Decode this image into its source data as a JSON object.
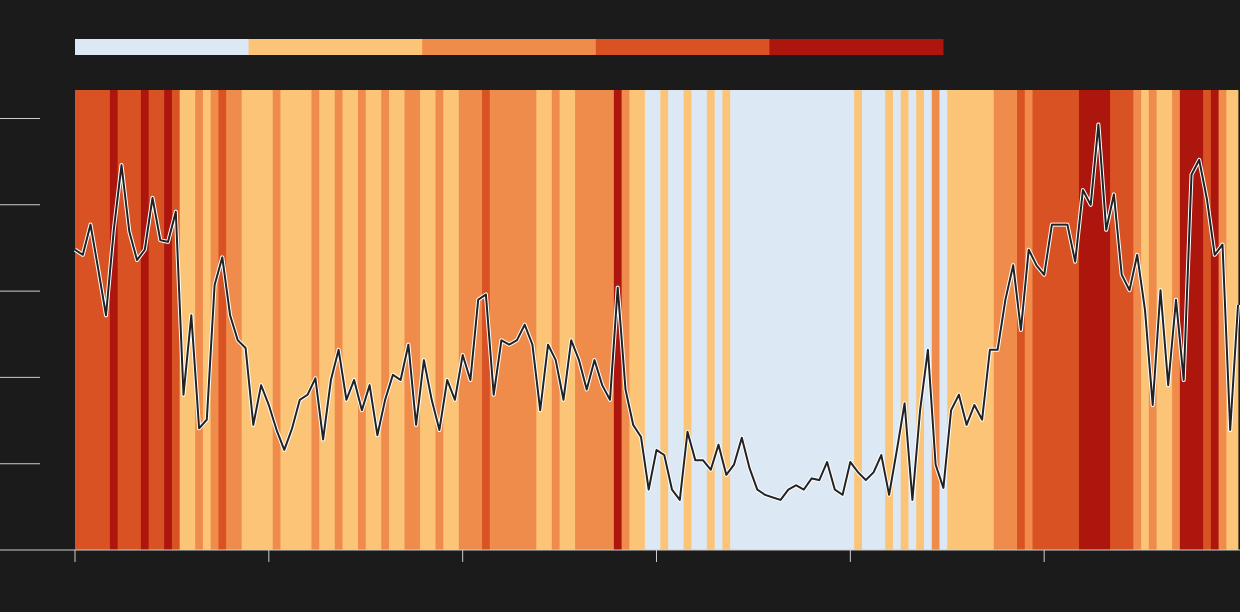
{
  "chart_data": {
    "type": "line",
    "x": [
      0,
      1,
      2,
      3,
      4,
      5,
      6,
      7,
      8,
      9,
      10,
      11,
      12,
      13,
      14,
      15,
      16,
      17,
      18,
      19,
      20,
      21,
      22,
      23,
      24,
      25,
      26,
      27,
      28,
      29,
      30,
      31,
      32,
      33,
      34,
      35,
      36,
      37,
      38,
      39,
      40,
      41,
      42,
      43,
      44,
      45,
      46,
      47,
      48,
      49,
      50,
      51,
      52,
      53,
      54,
      55,
      56,
      57,
      58,
      59,
      60,
      61,
      62,
      63,
      64,
      65,
      66,
      67,
      68,
      69,
      70,
      71,
      72,
      73,
      74,
      75,
      76,
      77,
      78,
      79,
      80,
      81,
      82,
      83,
      84,
      85,
      86,
      87,
      88,
      89,
      90,
      91,
      92,
      93,
      94,
      95,
      96,
      97,
      98,
      99,
      100,
      101,
      102,
      103,
      104,
      105,
      106,
      107,
      108,
      109,
      110,
      111,
      112,
      113,
      114,
      115,
      116,
      117,
      118,
      119,
      120,
      121,
      122,
      123,
      124,
      125,
      126,
      127,
      128,
      129,
      130,
      131,
      132,
      133,
      134,
      135,
      136,
      137,
      138,
      139,
      140,
      141,
      142,
      143,
      144,
      145,
      146,
      147,
      148,
      149,
      150
    ],
    "values": [
      3.48,
      3.42,
      3.77,
      3.25,
      2.72,
      3.71,
      4.46,
      3.69,
      3.36,
      3.48,
      4.08,
      3.59,
      3.57,
      3.92,
      1.8,
      2.72,
      1.41,
      1.51,
      3.07,
      3.39,
      2.72,
      2.43,
      2.34,
      1.45,
      1.91,
      1.68,
      1.39,
      1.16,
      1.41,
      1.74,
      1.8,
      1.99,
      1.28,
      1.97,
      2.32,
      1.74,
      1.97,
      1.62,
      1.91,
      1.33,
      1.74,
      2.03,
      1.97,
      2.38,
      1.45,
      2.2,
      1.74,
      1.39,
      1.97,
      1.74,
      2.26,
      1.97,
      2.9,
      2.96,
      1.8,
      2.43,
      2.38,
      2.43,
      2.61,
      2.38,
      1.62,
      2.38,
      2.2,
      1.74,
      2.43,
      2.2,
      1.86,
      2.2,
      1.91,
      1.74,
      3.04,
      1.86,
      1.45,
      1.31,
      0.7,
      1.16,
      1.1,
      0.7,
      0.58,
      1.37,
      1.04,
      1.04,
      0.93,
      1.22,
      0.87,
      0.99,
      1.3,
      0.95,
      0.7,
      0.64,
      0.61,
      0.58,
      0.7,
      0.75,
      0.7,
      0.83,
      0.81,
      1.02,
      0.7,
      0.64,
      1.02,
      0.9,
      0.81,
      0.9,
      1.1,
      0.64,
      1.16,
      1.7,
      0.58,
      1.62,
      2.32,
      0.99,
      0.72,
      1.62,
      1.8,
      1.45,
      1.68,
      1.51,
      2.32,
      2.32,
      2.9,
      3.3,
      2.55,
      3.48,
      3.3,
      3.19,
      3.77,
      3.77,
      3.77,
      3.34,
      4.17,
      4.0,
      4.93,
      3.71,
      4.12,
      3.19,
      3.01,
      3.42,
      2.78,
      1.68,
      3.01,
      1.91,
      2.9,
      1.97,
      4.35,
      4.52,
      4.06,
      3.42,
      3.54,
      1.39,
      2.84
    ],
    "stripe_classes": [
      3,
      3,
      3,
      3,
      3,
      4,
      3,
      3,
      3,
      4,
      3,
      3,
      4,
      3,
      1,
      1,
      2,
      1,
      2,
      3,
      2,
      2,
      1,
      1,
      1,
      1,
      2,
      1,
      1,
      1,
      1,
      2,
      1,
      1,
      2,
      1,
      1,
      2,
      1,
      1,
      2,
      1,
      1,
      2,
      2,
      1,
      1,
      2,
      1,
      1,
      2,
      2,
      2,
      3,
      2,
      2,
      2,
      2,
      2,
      2,
      1,
      1,
      2,
      1,
      1,
      2,
      2,
      2,
      2,
      2,
      4,
      2,
      1,
      1,
      0,
      0,
      1,
      0,
      0,
      1,
      0,
      0,
      1,
      0,
      1,
      0,
      0,
      0,
      0,
      0,
      0,
      0,
      0,
      0,
      0,
      0,
      0,
      0,
      0,
      0,
      0,
      1,
      0,
      0,
      0,
      1,
      0,
      1,
      0,
      1,
      0,
      2,
      0,
      1,
      1,
      1,
      1,
      1,
      1,
      2,
      2,
      2,
      3,
      2,
      3,
      3,
      3,
      3,
      3,
      3,
      4,
      4,
      4,
      4,
      3,
      3,
      3,
      2,
      1,
      2,
      1,
      1,
      2,
      4,
      4,
      4,
      3,
      4,
      2,
      1,
      1
    ],
    "legend_colors": [
      "#dce9f4",
      "#fbc477",
      "#f08c4b",
      "#d95224",
      "#ad160c"
    ],
    "color": "#222222",
    "xlim": [
      0,
      150
    ],
    "xticks": [
      0,
      25,
      50,
      75,
      100,
      125
    ],
    "ylim": [
      0,
      5.33
    ],
    "yticks": [
      1,
      2,
      3,
      4,
      5
    ]
  }
}
